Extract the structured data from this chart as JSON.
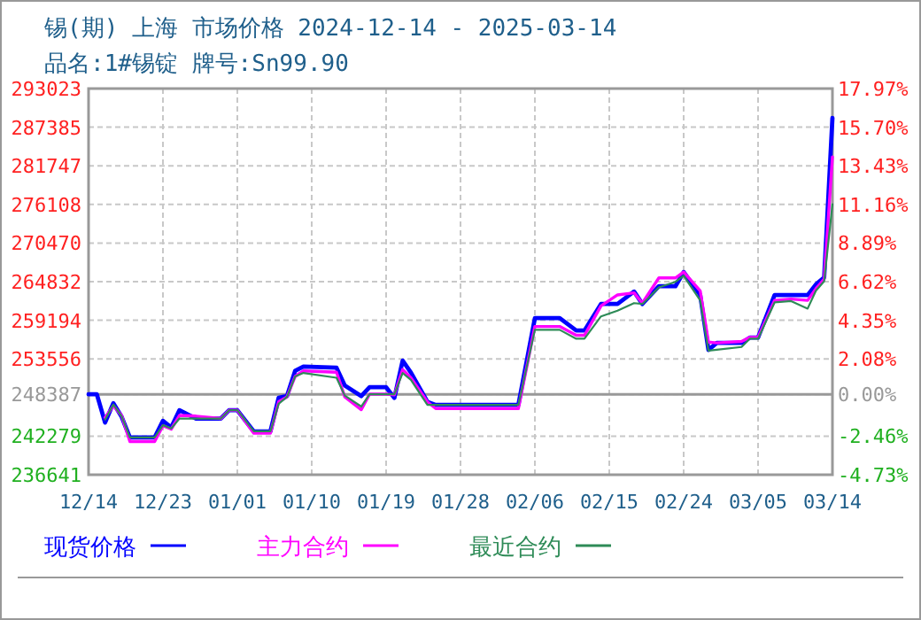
{
  "chart_data": {
    "type": "line",
    "title": "锡(期) 上海 市场价格 2024-12-14 - 2025-03-14",
    "subtitle": "品名:1#锡锭 牌号:Sn99.90",
    "x": [
      "2024-12-14",
      "2024-12-15",
      "2024-12-16",
      "2024-12-17",
      "2024-12-18",
      "2024-12-19",
      "2024-12-22",
      "2024-12-23",
      "2024-12-24",
      "2024-12-25",
      "2024-12-27",
      "2024-12-30",
      "2024-12-31",
      "2025-01-01",
      "2025-01-03",
      "2025-01-05",
      "2025-01-06",
      "2025-01-07",
      "2025-01-08",
      "2025-01-09",
      "2025-01-13",
      "2025-01-14",
      "2025-01-16",
      "2025-01-17",
      "2025-01-19",
      "2025-01-20",
      "2025-01-21",
      "2025-01-22",
      "2025-01-24",
      "2025-01-25",
      "2025-02-04",
      "2025-02-06",
      "2025-02-09",
      "2025-02-11",
      "2025-02-12",
      "2025-02-14",
      "2025-02-16",
      "2025-02-18",
      "2025-02-19",
      "2025-02-21",
      "2025-02-23",
      "2025-02-24",
      "2025-02-26",
      "2025-02-27",
      "2025-02-28",
      "2025-03-03",
      "2025-03-04",
      "2025-03-05",
      "2025-03-07",
      "2025-03-09",
      "2025-03-11",
      "2025-03-12",
      "2025-03-13",
      "2025-03-14"
    ],
    "series": [
      {
        "name": "现货价格",
        "color": "#0000ff",
        "values": [
          248387,
          248387,
          244250,
          247094,
          245103,
          242100,
          242100,
          244508,
          243551,
          246060,
          244844,
          244844,
          246060,
          246060,
          242957,
          242957,
          247870,
          248128,
          251826,
          252447,
          252266,
          249680,
          248128,
          249421,
          249421,
          247870,
          253300,
          251568,
          247275,
          246835,
          246835,
          259507,
          259507,
          257697,
          257697,
          261576,
          261576,
          263386,
          261576,
          264162,
          264162,
          266231,
          262869,
          254852,
          255886,
          255886,
          256662,
          256662,
          262869,
          262869,
          262869,
          264420,
          265454,
          288729
        ]
      },
      {
        "name": "主力合约",
        "color": "#ff00ff",
        "values": [
          null,
          null,
          245000,
          246700,
          245300,
          241483,
          241483,
          243800,
          243300,
          245300,
          245200,
          244844,
          246060,
          246060,
          242700,
          242700,
          247300,
          248000,
          251000,
          251800,
          251600,
          248000,
          246137,
          248400,
          248400,
          248300,
          252000,
          250800,
          247275,
          246300,
          246300,
          258291,
          258291,
          257000,
          257000,
          261300,
          262900,
          263200,
          261700,
          265375,
          265375,
          266231,
          263500,
          256000,
          255900,
          256100,
          256700,
          256700,
          262100,
          262300,
          262100,
          263800,
          265200,
          283040
        ]
      },
      {
        "name": "最近合约",
        "color": "#2e8b57",
        "values": [
          null,
          null,
          244700,
          246900,
          245200,
          242100,
          242100,
          243900,
          243400,
          244844,
          244844,
          244844,
          246060,
          246060,
          243000,
          243000,
          247000,
          248000,
          251000,
          251500,
          250800,
          248200,
          246600,
          248400,
          248400,
          248387,
          251500,
          250500,
          246835,
          246835,
          246835,
          257800,
          257800,
          256500,
          256500,
          259765,
          260600,
          261700,
          261576,
          264000,
          264800,
          265700,
          262100,
          254770,
          254900,
          255300,
          256500,
          256500,
          261800,
          262000,
          260900,
          263500,
          264900,
          276135
        ]
      }
    ],
    "xlim": [
      "2024-12-14",
      "2025-03-14"
    ],
    "xticks": [
      {
        "value": "2024-12-14",
        "label": "12/14"
      },
      {
        "value": "2024-12-23",
        "label": "12/23"
      },
      {
        "value": "2025-01-01",
        "label": "01/01"
      },
      {
        "value": "2025-01-10",
        "label": "01/10"
      },
      {
        "value": "2025-01-19",
        "label": "01/19"
      },
      {
        "value": "2025-01-28",
        "label": "01/28"
      },
      {
        "value": "2025-02-06",
        "label": "02/06"
      },
      {
        "value": "2025-02-15",
        "label": "02/15"
      },
      {
        "value": "2025-02-24",
        "label": "02/24"
      },
      {
        "value": "2025-03-05",
        "label": "03/05"
      },
      {
        "value": "2025-03-14",
        "label": "03/14"
      }
    ],
    "ylim": [
      236641,
      293023
    ],
    "yticks": [
      236641,
      242279,
      248387,
      253556,
      259194,
      264832,
      270470,
      276108,
      281747,
      287385,
      293023
    ],
    "y2lim": [
      -4.73,
      17.97
    ],
    "y2ticks": [
      {
        "value": -4.73,
        "label": "-4.73%"
      },
      {
        "value": -2.46,
        "label": "-2.46%"
      },
      {
        "value": 0,
        "label": "0.00%"
      },
      {
        "value": 2.08,
        "label": "2.08%"
      },
      {
        "value": 4.35,
        "label": "4.35%"
      },
      {
        "value": 6.62,
        "label": "6.62%"
      },
      {
        "value": 8.89,
        "label": "8.89%"
      },
      {
        "value": 11.16,
        "label": "11.16%"
      },
      {
        "value": 13.43,
        "label": "13.43%"
      },
      {
        "value": 15.7,
        "label": "15.70%"
      },
      {
        "value": 17.97,
        "label": "17.97%"
      }
    ],
    "ref_lines": [
      {
        "axis": "y",
        "value": 248387,
        "color": "#999999"
      }
    ],
    "grid": true,
    "legend": "bottom",
    "marker": "none",
    "line_style": "solid"
  }
}
